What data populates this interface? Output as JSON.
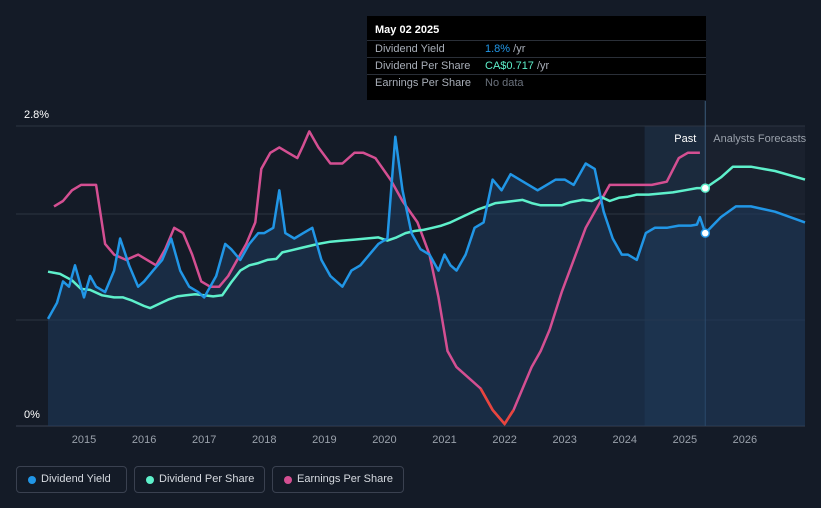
{
  "chart_data": {
    "type": "line",
    "y_axis": {
      "label_top": "2.8%",
      "label_bottom": "0%",
      "ylim": [
        0,
        2.8
      ]
    },
    "x_ticks": [
      "2015",
      "2016",
      "2017",
      "2018",
      "2019",
      "2020",
      "2021",
      "2022",
      "2023",
      "2024",
      "2025",
      "2026"
    ],
    "xlim": [
      2014.4,
      2027.0
    ],
    "past_label": "Past",
    "forecast_label": "Analysts Forecasts",
    "past_region": [
      2024.33,
      2025.34
    ],
    "series": [
      {
        "name": "Dividend Yield",
        "color": "#2196e6",
        "scale": "pct",
        "points": [
          [
            2014.4,
            1.0
          ],
          [
            2014.55,
            1.15
          ],
          [
            2014.65,
            1.35
          ],
          [
            2014.75,
            1.3
          ],
          [
            2014.85,
            1.5
          ],
          [
            2015.0,
            1.2
          ],
          [
            2015.1,
            1.4
          ],
          [
            2015.2,
            1.3
          ],
          [
            2015.35,
            1.25
          ],
          [
            2015.5,
            1.45
          ],
          [
            2015.6,
            1.75
          ],
          [
            2015.75,
            1.5
          ],
          [
            2015.9,
            1.3
          ],
          [
            2016.0,
            1.35
          ],
          [
            2016.15,
            1.45
          ],
          [
            2016.3,
            1.55
          ],
          [
            2016.45,
            1.75
          ],
          [
            2016.6,
            1.45
          ],
          [
            2016.75,
            1.3
          ],
          [
            2016.9,
            1.25
          ],
          [
            2017.0,
            1.2
          ],
          [
            2017.1,
            1.3
          ],
          [
            2017.2,
            1.4
          ],
          [
            2017.35,
            1.7
          ],
          [
            2017.45,
            1.65
          ],
          [
            2017.6,
            1.55
          ],
          [
            2017.75,
            1.7
          ],
          [
            2017.9,
            1.8
          ],
          [
            2018.0,
            1.8
          ],
          [
            2018.15,
            1.85
          ],
          [
            2018.25,
            2.2
          ],
          [
            2018.35,
            1.8
          ],
          [
            2018.5,
            1.75
          ],
          [
            2018.65,
            1.8
          ],
          [
            2018.8,
            1.85
          ],
          [
            2018.95,
            1.55
          ],
          [
            2019.1,
            1.4
          ],
          [
            2019.3,
            1.3
          ],
          [
            2019.45,
            1.45
          ],
          [
            2019.6,
            1.5
          ],
          [
            2019.75,
            1.6
          ],
          [
            2019.9,
            1.7
          ],
          [
            2020.05,
            1.75
          ],
          [
            2020.18,
            2.7
          ],
          [
            2020.3,
            2.2
          ],
          [
            2020.45,
            1.8
          ],
          [
            2020.6,
            1.65
          ],
          [
            2020.75,
            1.6
          ],
          [
            2020.9,
            1.45
          ],
          [
            2021.0,
            1.6
          ],
          [
            2021.1,
            1.5
          ],
          [
            2021.2,
            1.45
          ],
          [
            2021.35,
            1.6
          ],
          [
            2021.5,
            1.85
          ],
          [
            2021.65,
            1.9
          ],
          [
            2021.8,
            2.3
          ],
          [
            2021.95,
            2.2
          ],
          [
            2022.1,
            2.35
          ],
          [
            2022.25,
            2.3
          ],
          [
            2022.4,
            2.25
          ],
          [
            2022.55,
            2.2
          ],
          [
            2022.7,
            2.25
          ],
          [
            2022.85,
            2.3
          ],
          [
            2023.0,
            2.3
          ],
          [
            2023.15,
            2.25
          ],
          [
            2023.35,
            2.45
          ],
          [
            2023.5,
            2.4
          ],
          [
            2023.65,
            2.0
          ],
          [
            2023.8,
            1.75
          ],
          [
            2023.95,
            1.6
          ],
          [
            2024.05,
            1.6
          ],
          [
            2024.2,
            1.55
          ],
          [
            2024.35,
            1.8
          ],
          [
            2024.5,
            1.85
          ],
          [
            2024.7,
            1.85
          ],
          [
            2024.9,
            1.87
          ],
          [
            2025.1,
            1.87
          ],
          [
            2025.2,
            1.88
          ],
          [
            2025.25,
            1.95
          ],
          [
            2025.34,
            1.8
          ]
        ],
        "forecast": [
          [
            2025.34,
            1.8
          ],
          [
            2025.6,
            1.95
          ],
          [
            2025.85,
            2.05
          ],
          [
            2026.1,
            2.05
          ],
          [
            2026.5,
            2.0
          ],
          [
            2027.0,
            1.9
          ]
        ]
      },
      {
        "name": "Dividend Per Share",
        "color": "#5ef0cb",
        "scale": "dps",
        "points": [
          [
            2014.4,
            1.44
          ],
          [
            2014.6,
            1.42
          ],
          [
            2014.8,
            1.36
          ],
          [
            2014.95,
            1.28
          ],
          [
            2015.1,
            1.27
          ],
          [
            2015.3,
            1.22
          ],
          [
            2015.5,
            1.2
          ],
          [
            2015.65,
            1.2
          ],
          [
            2015.8,
            1.17
          ],
          [
            2016.0,
            1.12
          ],
          [
            2016.1,
            1.1
          ],
          [
            2016.25,
            1.14
          ],
          [
            2016.4,
            1.18
          ],
          [
            2016.55,
            1.21
          ],
          [
            2016.7,
            1.22
          ],
          [
            2016.85,
            1.23
          ],
          [
            2017.0,
            1.22
          ],
          [
            2017.15,
            1.21
          ],
          [
            2017.3,
            1.22
          ],
          [
            2017.45,
            1.34
          ],
          [
            2017.6,
            1.45
          ],
          [
            2017.75,
            1.5
          ],
          [
            2017.9,
            1.52
          ],
          [
            2018.05,
            1.55
          ],
          [
            2018.2,
            1.56
          ],
          [
            2018.3,
            1.62
          ],
          [
            2018.45,
            1.64
          ],
          [
            2018.6,
            1.66
          ],
          [
            2018.75,
            1.68
          ],
          [
            2018.9,
            1.7
          ],
          [
            2019.1,
            1.72
          ],
          [
            2019.3,
            1.73
          ],
          [
            2019.5,
            1.74
          ],
          [
            2019.7,
            1.75
          ],
          [
            2019.9,
            1.76
          ],
          [
            2020.05,
            1.73
          ],
          [
            2020.2,
            1.76
          ],
          [
            2020.35,
            1.8
          ],
          [
            2020.5,
            1.82
          ],
          [
            2020.65,
            1.83
          ],
          [
            2020.8,
            1.85
          ],
          [
            2020.95,
            1.87
          ],
          [
            2021.1,
            1.9
          ],
          [
            2021.25,
            1.94
          ],
          [
            2021.4,
            1.98
          ],
          [
            2021.55,
            2.02
          ],
          [
            2021.7,
            2.05
          ],
          [
            2021.85,
            2.08
          ],
          [
            2022.0,
            2.09
          ],
          [
            2022.15,
            2.1
          ],
          [
            2022.3,
            2.11
          ],
          [
            2022.45,
            2.08
          ],
          [
            2022.6,
            2.06
          ],
          [
            2022.8,
            2.06
          ],
          [
            2022.95,
            2.06
          ],
          [
            2023.1,
            2.09
          ],
          [
            2023.3,
            2.11
          ],
          [
            2023.45,
            2.1
          ],
          [
            2023.6,
            2.14
          ],
          [
            2023.75,
            2.1
          ],
          [
            2023.9,
            2.13
          ],
          [
            2024.05,
            2.14
          ],
          [
            2024.2,
            2.16
          ],
          [
            2024.4,
            2.16
          ],
          [
            2024.6,
            2.17
          ],
          [
            2024.8,
            2.18
          ],
          [
            2025.0,
            2.2
          ],
          [
            2025.2,
            2.22
          ],
          [
            2025.34,
            2.22
          ]
        ],
        "forecast": [
          [
            2025.34,
            2.22
          ],
          [
            2025.6,
            2.32
          ],
          [
            2025.8,
            2.42
          ],
          [
            2026.1,
            2.42
          ],
          [
            2026.5,
            2.38
          ],
          [
            2027.0,
            2.3
          ]
        ]
      },
      {
        "name": "Earnings Per Share",
        "color": "#d44f92",
        "scale": "eps",
        "points": [
          [
            2014.5,
            2.05
          ],
          [
            2014.65,
            2.1
          ],
          [
            2014.8,
            2.2
          ],
          [
            2014.95,
            2.25
          ],
          [
            2015.2,
            2.25
          ],
          [
            2015.35,
            1.7
          ],
          [
            2015.5,
            1.6
          ],
          [
            2015.7,
            1.55
          ],
          [
            2015.9,
            1.6
          ],
          [
            2016.05,
            1.55
          ],
          [
            2016.2,
            1.5
          ],
          [
            2016.35,
            1.65
          ],
          [
            2016.5,
            1.85
          ],
          [
            2016.65,
            1.8
          ],
          [
            2016.8,
            1.6
          ],
          [
            2016.95,
            1.35
          ],
          [
            2017.1,
            1.3
          ],
          [
            2017.25,
            1.3
          ],
          [
            2017.4,
            1.4
          ],
          [
            2017.55,
            1.55
          ],
          [
            2017.7,
            1.7
          ],
          [
            2017.85,
            1.9
          ],
          [
            2017.95,
            2.4
          ],
          [
            2018.1,
            2.55
          ],
          [
            2018.25,
            2.6
          ],
          [
            2018.4,
            2.55
          ],
          [
            2018.55,
            2.5
          ],
          [
            2018.65,
            2.62
          ],
          [
            2018.75,
            2.75
          ],
          [
            2018.9,
            2.6
          ],
          [
            2019.1,
            2.45
          ],
          [
            2019.3,
            2.45
          ],
          [
            2019.5,
            2.55
          ],
          [
            2019.65,
            2.55
          ],
          [
            2019.85,
            2.5
          ],
          [
            2020.1,
            2.3
          ],
          [
            2020.3,
            2.1
          ],
          [
            2020.55,
            1.9
          ],
          [
            2020.75,
            1.6
          ],
          [
            2020.9,
            1.2
          ],
          [
            2021.05,
            0.7
          ],
          [
            2021.2,
            0.55
          ],
          [
            2021.4,
            0.45
          ],
          [
            2021.6,
            0.35
          ],
          [
            2021.8,
            0.15
          ],
          [
            2022.0,
            0.02
          ],
          [
            2022.15,
            0.15
          ],
          [
            2022.3,
            0.35
          ],
          [
            2022.45,
            0.55
          ],
          [
            2022.6,
            0.7
          ],
          [
            2022.75,
            0.9
          ],
          [
            2022.95,
            1.25
          ],
          [
            2023.15,
            1.55
          ],
          [
            2023.35,
            1.85
          ],
          [
            2023.55,
            2.05
          ],
          [
            2023.75,
            2.25
          ],
          [
            2023.95,
            2.25
          ],
          [
            2024.2,
            2.25
          ],
          [
            2024.45,
            2.25
          ],
          [
            2024.7,
            2.28
          ],
          [
            2024.9,
            2.5
          ],
          [
            2025.05,
            2.55
          ],
          [
            2025.25,
            2.55
          ]
        ]
      }
    ]
  },
  "tooltip": {
    "date": "May 02 2025",
    "rows": [
      {
        "label": "Dividend Yield",
        "value": "1.8%",
        "unit": " /yr",
        "color": "#2196e6"
      },
      {
        "label": "Dividend Per Share",
        "value": "CA$0.717",
        "unit": " /yr",
        "color": "#5ef0cb"
      },
      {
        "label": "Earnings Per Share",
        "value": "No data",
        "unit": "",
        "color": "#6b727d"
      }
    ]
  },
  "legend": [
    {
      "label": "Dividend Yield",
      "color": "#2196e6"
    },
    {
      "label": "Dividend Per Share",
      "color": "#5ef0cb"
    },
    {
      "label": "Earnings Per Share",
      "color": "#d44f92"
    }
  ]
}
